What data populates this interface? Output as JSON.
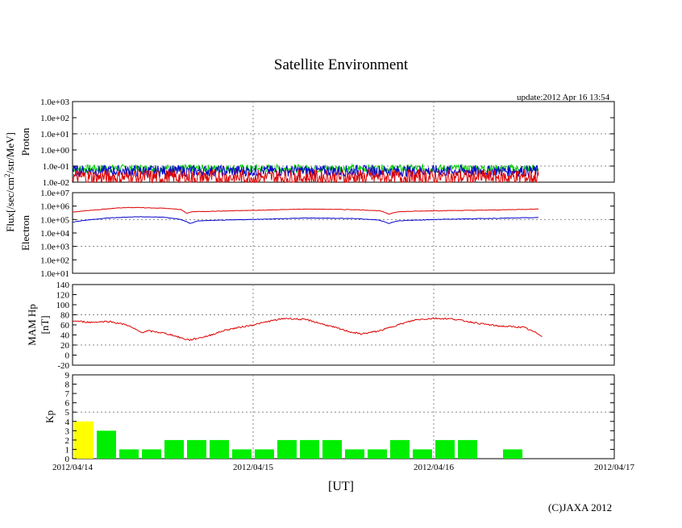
{
  "title": "Satellite Environment",
  "update": "update:2012 Apr 16 13:54",
  "copyright": "(C)JAXA 2012",
  "x_axis_label": "[UT]",
  "colors": {
    "red": "#dd0000",
    "blue": "#0000cc",
    "green": "#00cc00",
    "yellow": "#ffff00",
    "kp_green": "#00ee00"
  },
  "chart_data": [
    {
      "type": "line",
      "name": "proton",
      "ylabel": "Proton",
      "scale": "log",
      "ylim": [
        0.01,
        1000
      ],
      "ticks": [
        "1.0e+03",
        "1.0e+02",
        "1.0e+01",
        "1.0e+00",
        "1.0e-01",
        "1.0e-02"
      ],
      "x_range_days": [
        0,
        3
      ],
      "data_end_day": 2.58,
      "series": [
        {
          "name": "proton-channel-green",
          "color": "green",
          "base": 0.07,
          "noise_decades": 0.25
        },
        {
          "name": "proton-channel-blue",
          "color": "blue",
          "base": 0.05,
          "noise_decades": 0.35
        },
        {
          "name": "proton-channel-red",
          "color": "red",
          "base": 0.02,
          "noise_decades": 0.5
        }
      ]
    },
    {
      "type": "line",
      "name": "electron",
      "ylabel": "Electron",
      "scale": "log",
      "ylim": [
        10,
        10000000
      ],
      "ticks": [
        "1.0e+07",
        "1.0e+06",
        "1.0e+05",
        "1.0e+04",
        "1.0e+03",
        "1.0e+02",
        "1.0e+01"
      ],
      "series": [
        {
          "name": "electron-high",
          "color": "red",
          "points": [
            [
              0,
              350000
            ],
            [
              0.15,
              550000
            ],
            [
              0.3,
              800000
            ],
            [
              0.5,
              700000
            ],
            [
              0.6,
              550000
            ],
            [
              0.63,
              280000
            ],
            [
              0.66,
              380000
            ],
            [
              0.8,
              420000
            ],
            [
              1.0,
              480000
            ],
            [
              1.3,
              600000
            ],
            [
              1.55,
              550000
            ],
            [
              1.7,
              450000
            ],
            [
              1.75,
              250000
            ],
            [
              1.8,
              380000
            ],
            [
              2.0,
              450000
            ],
            [
              2.3,
              500000
            ],
            [
              2.58,
              600000
            ]
          ]
        },
        {
          "name": "electron-low",
          "color": "blue",
          "points": [
            [
              0,
              65000
            ],
            [
              0.2,
              130000
            ],
            [
              0.35,
              160000
            ],
            [
              0.5,
              150000
            ],
            [
              0.6,
              100000
            ],
            [
              0.65,
              50000
            ],
            [
              0.7,
              80000
            ],
            [
              0.9,
              95000
            ],
            [
              1.1,
              110000
            ],
            [
              1.3,
              130000
            ],
            [
              1.55,
              120000
            ],
            [
              1.7,
              90000
            ],
            [
              1.75,
              50000
            ],
            [
              1.8,
              80000
            ],
            [
              2.0,
              100000
            ],
            [
              2.3,
              120000
            ],
            [
              2.58,
              140000
            ]
          ]
        }
      ]
    },
    {
      "type": "line",
      "name": "mam-hp",
      "ylabel_lines": [
        "MAM Hp",
        "[nT]"
      ],
      "ylim": [
        -20,
        140
      ],
      "ticks": [
        "140",
        "120",
        "100",
        "80",
        "60",
        "40",
        "20",
        "0",
        "-20"
      ],
      "series": [
        {
          "name": "hp",
          "color": "red",
          "points": [
            [
              0,
              68
            ],
            [
              0.1,
              65
            ],
            [
              0.2,
              67
            ],
            [
              0.3,
              60
            ],
            [
              0.38,
              45
            ],
            [
              0.42,
              48
            ],
            [
              0.5,
              44
            ],
            [
              0.55,
              40
            ],
            [
              0.62,
              32
            ],
            [
              0.65,
              30
            ],
            [
              0.75,
              38
            ],
            [
              0.85,
              50
            ],
            [
              1.0,
              60
            ],
            [
              1.1,
              68
            ],
            [
              1.18,
              73
            ],
            [
              1.3,
              70
            ],
            [
              1.45,
              55
            ],
            [
              1.55,
              45
            ],
            [
              1.6,
              42
            ],
            [
              1.7,
              48
            ],
            [
              1.8,
              60
            ],
            [
              1.9,
              70
            ],
            [
              2.0,
              73
            ],
            [
              2.1,
              72
            ],
            [
              2.25,
              63
            ],
            [
              2.35,
              58
            ],
            [
              2.5,
              55
            ],
            [
              2.58,
              42
            ],
            [
              2.6,
              38
            ]
          ]
        }
      ]
    },
    {
      "type": "bar",
      "name": "kp",
      "ylabel": "Kp",
      "ylim": [
        0,
        9
      ],
      "ticks": [
        "9",
        "8",
        "7",
        "6",
        "5",
        "4",
        "3",
        "2",
        "1",
        "0"
      ],
      "bin_hours": 3,
      "values": [
        4,
        3,
        1,
        1,
        2,
        2,
        2,
        1,
        1,
        2,
        2,
        2,
        1,
        1,
        2,
        1,
        2,
        2,
        0,
        1
      ],
      "highlight_first": true
    }
  ],
  "flux_label": "Flux[/sec/cm",
  "flux_label_sup": "2",
  "flux_label_end": "/str/MeV]",
  "x_ticks": [
    "2012/04/14",
    "2012/04/15",
    "2012/04/16",
    "2012/04/17"
  ]
}
